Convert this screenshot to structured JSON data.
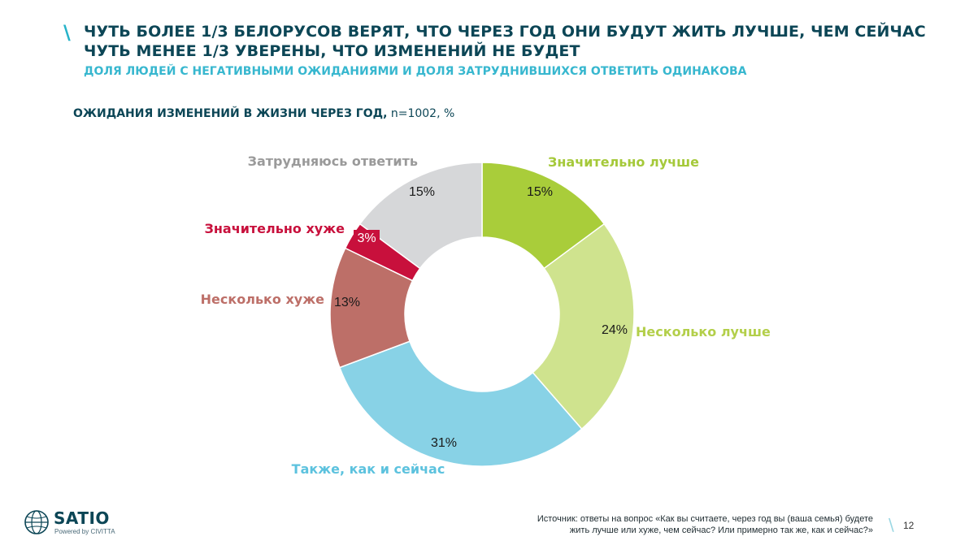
{
  "header": {
    "title_line1": "ЧУТЬ БОЛЕЕ 1/3 БЕЛОРУСОВ ВЕРЯТ, ЧТО ЧЕРЕЗ ГОД ОНИ БУДУТ ЖИТЬ ЛУЧШЕ, ЧЕМ СЕЙЧАС",
    "title_line2": "ЧУТЬ МЕНЕЕ 1/3 УВЕРЕНЫ, ЧТО ИЗМЕНЕНИЙ НЕ БУДЕТ",
    "subtitle": "ДОЛЯ ЛЮДЕЙ С НЕГАТИВНЫМИ ОЖИДАНИЯМИ И ДОЛЯ ЗАТРУДНИВШИХСЯ ОТВЕТИТЬ ОДИНАКОВА",
    "slash": "\\"
  },
  "chart_heading": {
    "bold": "ОЖИДАНИЯ ИЗМЕНЕНИЙ В ЖИЗНИ ЧЕРЕЗ ГОД,",
    "rest": " n=1002, %"
  },
  "chart_data": {
    "type": "pie",
    "donut": true,
    "title": "ОЖИДАНИЯ ИЗМЕНЕНИЙ В ЖИЗНИ ЧЕРЕЗ ГОД, n=1002, %",
    "unit": "%",
    "slices": [
      {
        "label": "Значительно лучше",
        "value": 15,
        "display": "15%",
        "color": "#a9cd3a",
        "label_color": "#a5c93a"
      },
      {
        "label": "Несколько лучше",
        "value": 24,
        "display": "24%",
        "color": "#cfe38e",
        "label_color": "#b3cf4a"
      },
      {
        "label": "Также, как и сейчас",
        "value": 31,
        "display": "31%",
        "color": "#88d2e6",
        "label_color": "#5cc2de"
      },
      {
        "label": "Несколько хуже",
        "value": 13,
        "display": "13%",
        "color": "#bd6f68",
        "label_color": "#bd6f68"
      },
      {
        "label": "Значительно хуже",
        "value": 3,
        "display": "3%",
        "color": "#c8103c",
        "label_color": "#c8103c"
      },
      {
        "label": "Затрудняюсь ответить",
        "value": 15,
        "display": "15%",
        "color": "#d6d7d9",
        "label_color": "#9a9a9a"
      }
    ]
  },
  "footer": {
    "logo_text": "SATIO",
    "logo_sub": "Powered by CIVITTA",
    "source_line1": "Источник: ответы на вопрос «Как вы считаете, через год вы (ваша семья) будете",
    "source_line2": "жить лучше или хуже, чем сейчас? Или примерно так же, как и сейчас?»",
    "page_slash": "\\",
    "page_number": "12"
  }
}
